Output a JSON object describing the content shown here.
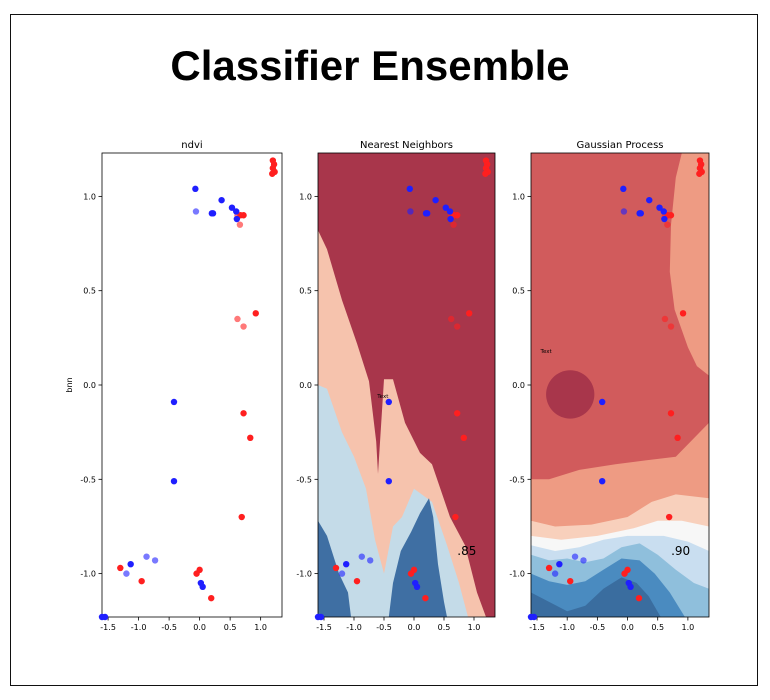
{
  "page": {
    "title": "Classifier Ensemble"
  },
  "chart_data": [
    {
      "type": "scatter",
      "title": "ndvi",
      "xlabel": "",
      "ylabel": "bnn",
      "xlim": [
        -1.6,
        1.35
      ],
      "ylim": [
        -1.23,
        1.23
      ],
      "xticks": [
        -1.5,
        -1.0,
        -0.5,
        0.0,
        0.5,
        1.0
      ],
      "yticks": [
        -1.0,
        -0.5,
        0.0,
        0.5,
        1.0
      ],
      "background": "none",
      "annotations": []
    },
    {
      "type": "scatter",
      "title": "Nearest Neighbors",
      "xlim": [
        -1.6,
        1.35
      ],
      "ylim": [
        -1.23,
        1.23
      ],
      "xticks": [
        -1.5,
        -1.0,
        -0.5,
        0.0,
        0.5,
        1.0
      ],
      "yticks": [
        -1.0,
        -0.5,
        0.0,
        0.5,
        1.0
      ],
      "background": "knn",
      "annotations": [
        {
          "text": "Text",
          "x": -0.52,
          "y": -0.07,
          "size": "small"
        },
        {
          "text": ".85",
          "x": 0.88,
          "y": -0.9,
          "size": "large"
        }
      ]
    },
    {
      "type": "scatter",
      "title": "Gaussian Process",
      "xlim": [
        -1.6,
        1.35
      ],
      "ylim": [
        -1.23,
        1.23
      ],
      "xticks": [
        -1.5,
        -1.0,
        -0.5,
        0.0,
        0.5,
        1.0
      ],
      "yticks": [
        -1.0,
        -0.5,
        0.0,
        0.5,
        1.0
      ],
      "background": "gp",
      "annotations": [
        {
          "text": "Text",
          "x": -1.35,
          "y": 0.17,
          "size": "small"
        },
        {
          "text": ".90",
          "x": 0.88,
          "y": -0.9,
          "size": "large"
        }
      ]
    }
  ],
  "points": {
    "class_red": [
      [
        1.2,
        1.19
      ],
      [
        1.22,
        1.17
      ],
      [
        1.2,
        1.15
      ],
      [
        1.23,
        1.13
      ],
      [
        1.19,
        1.12
      ],
      [
        0.62,
        0.9
      ],
      [
        0.67,
        0.9
      ],
      [
        0.72,
        0.9
      ],
      [
        0.66,
        0.85
      ],
      [
        0.92,
        0.38
      ],
      [
        0.62,
        0.35
      ],
      [
        0.72,
        0.31
      ],
      [
        0.72,
        -0.15
      ],
      [
        0.83,
        -0.28
      ],
      [
        0.69,
        -0.7
      ],
      [
        -1.3,
        -0.97
      ],
      [
        -0.95,
        -1.04
      ],
      [
        0.0,
        -0.98
      ],
      [
        -0.05,
        -1.0
      ],
      [
        0.19,
        -1.13
      ]
    ],
    "class_blue": [
      [
        -0.07,
        1.04
      ],
      [
        0.36,
        0.98
      ],
      [
        0.53,
        0.94
      ],
      [
        0.6,
        0.92
      ],
      [
        -0.06,
        0.92
      ],
      [
        0.2,
        0.91
      ],
      [
        0.22,
        0.91
      ],
      [
        0.61,
        0.88
      ],
      [
        -0.42,
        -0.09
      ],
      [
        -0.42,
        -0.51
      ],
      [
        -0.87,
        -0.91
      ],
      [
        -0.73,
        -0.93
      ],
      [
        -1.13,
        -0.95
      ],
      [
        -1.2,
        -1.0
      ],
      [
        0.02,
        -1.05
      ],
      [
        0.05,
        -1.07
      ],
      [
        -1.55,
        -1.23
      ],
      [
        -1.6,
        -1.23
      ]
    ],
    "light_red_idx": [
      5,
      8,
      10,
      11
    ],
    "light_blue_idx": [
      4,
      10,
      11,
      13
    ]
  },
  "colors": {
    "red": "#ff1f1f",
    "blue": "#1f1fff",
    "knn_dark_red": "#a8364b",
    "knn_salmon": "#f6c3ad",
    "knn_light_blue": "#c4dbe8",
    "knn_dark_blue": "#3f6fa3",
    "gp_levels": [
      "#a8364b",
      "#d15b5c",
      "#ee9b83",
      "#f8d0bc",
      "#f7f7f7",
      "#c9def0",
      "#8fbfdc",
      "#4a8bc0",
      "#3a6d9f"
    ]
  }
}
